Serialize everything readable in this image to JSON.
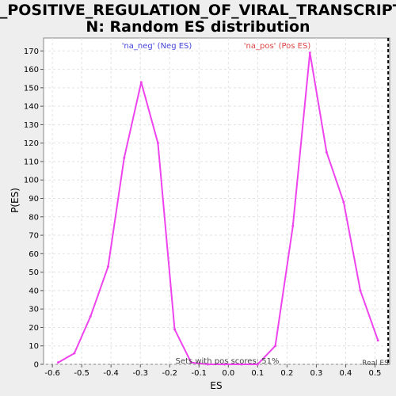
{
  "chart_data": {
    "type": "line",
    "title_line1": "GO_POSITIVE_REGULATION_OF_VIRAL_TRANSCRIPTIO",
    "title_line2": "N: Random ES distribution",
    "xlabel": "ES",
    "ylabel": "P(ES)",
    "xlim": [
      -0.63,
      0.55
    ],
    "ylim": [
      0,
      177
    ],
    "xticks": [
      -0.6,
      -0.5,
      -0.4,
      -0.3,
      -0.2,
      -0.1,
      0.0,
      0.1,
      0.2,
      0.3,
      0.4,
      0.5
    ],
    "xtick_labels": [
      "-0.6",
      "-0.5",
      "-0.4",
      "-0.3",
      "-0.2",
      "-0.1",
      "0.0",
      "0.1",
      "0.2",
      "0.3",
      "0.4",
      "0.5"
    ],
    "yticks": [
      0,
      10,
      20,
      30,
      40,
      50,
      60,
      70,
      80,
      90,
      100,
      110,
      120,
      130,
      140,
      150,
      160,
      170
    ],
    "ytick_labels": [
      "0",
      "10",
      "20",
      "30",
      "40",
      "50",
      "60",
      "70",
      "80",
      "90",
      "100",
      "110",
      "120",
      "130",
      "140",
      "150",
      "160",
      "170"
    ],
    "grid": true,
    "series": [
      {
        "color": "#ee44ee",
        "x": [
          -0.58,
          -0.525,
          -0.47,
          -0.41,
          -0.355,
          -0.297,
          -0.24,
          -0.183,
          -0.127,
          -0.07,
          -0.013,
          0.045,
          0.1,
          0.16,
          0.22,
          0.278,
          0.335,
          0.393,
          0.45,
          0.51
        ],
        "y": [
          1,
          6,
          26,
          53,
          112,
          153,
          120,
          19,
          1,
          0,
          0,
          0,
          0,
          10,
          75,
          169,
          115,
          88,
          40,
          13
        ]
      }
    ],
    "annotations": {
      "neg_label": "'na_neg' (Neg ES)",
      "pos_label": "'na_pos' (Pos ES)",
      "neg_color": "#4444dd",
      "pos_color": "#dd4444",
      "pos_scores": "Sets with pos scores: 51%",
      "real_es": "Real ES",
      "real_es_x": 0.545
    }
  }
}
